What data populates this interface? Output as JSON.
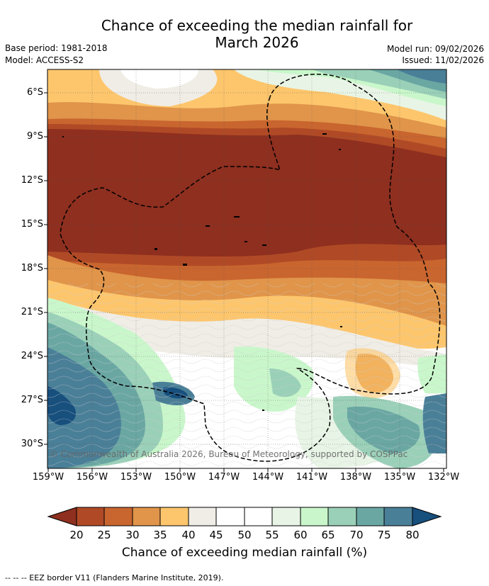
{
  "title": {
    "line1": "Chance of exceeding the median rainfall for",
    "line2": "March 2026"
  },
  "meta": {
    "base_period": "Base period: 1981-2018",
    "model": "Model: ACCESS-S2",
    "model_run": "Model run: 09/02/2026",
    "issued": "Issued: 11/02/2026"
  },
  "axes": {
    "lat_ticks": [
      "6°S",
      "9°S",
      "12°S",
      "15°S",
      "18°S",
      "21°S",
      "24°S",
      "27°S",
      "30°S"
    ],
    "lon_ticks": [
      "159°W",
      "156°W",
      "153°W",
      "150°W",
      "147°W",
      "144°W",
      "141°W",
      "138°W",
      "135°W",
      "132°W"
    ]
  },
  "copyright": "© Commonwealth of Australia 2026, Bureau of Meteorology, supported by COSPPac",
  "colorbar": {
    "title": "Chance of exceeding median rainfall (%)",
    "labels": [
      "20",
      "25",
      "30",
      "35",
      "40",
      "45",
      "50",
      "55",
      "60",
      "65",
      "70",
      "75",
      "80"
    ],
    "colors": [
      "#8e2f1f",
      "#b04a26",
      "#c9652f",
      "#e0954a",
      "#fdc66d",
      "#f0ede6",
      "#ffffff",
      "#ffffff",
      "#e8f5e6",
      "#c9f7cb",
      "#9ad0b8",
      "#6aa7a3",
      "#4a7f98",
      "#174f7d"
    ]
  },
  "footnote": "--  --  -- EEZ border V11 (Flanders Marine Institute, 2019)."
}
